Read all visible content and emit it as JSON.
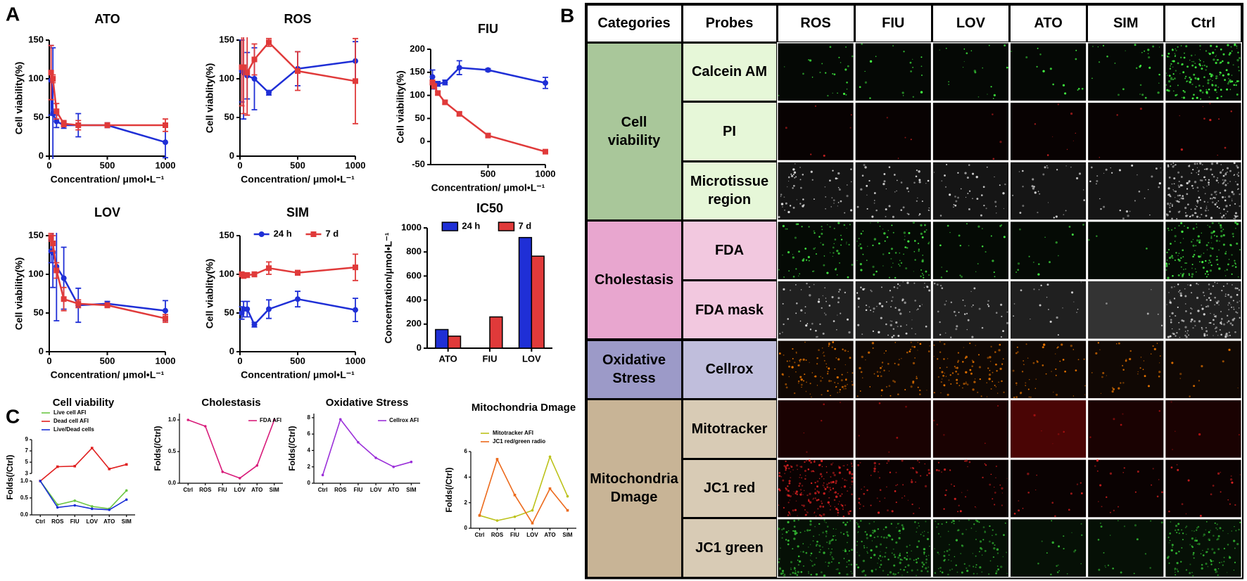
{
  "panel_labels": [
    "A",
    "B",
    "C"
  ],
  "chart_data": [
    {
      "type": "line",
      "title": "ATO",
      "x": [
        15.6,
        31.3,
        62.5,
        125,
        250,
        500,
        1000
      ],
      "xlim": [
        0,
        1000
      ],
      "xticks": [
        0,
        500,
        1000
      ],
      "ylim": [
        0,
        150
      ],
      "yticks": [
        0,
        50,
        100,
        150
      ],
      "x_label": "Concentration/ μmol•L⁻¹",
      "y_label": "Cell viability(%)",
      "series": [
        {
          "color": "#1f2fd6",
          "values": [
            98,
            55,
            45,
            40,
            40,
            40,
            18
          ],
          "errors": [
            45,
            85,
            8,
            4,
            15,
            3,
            20
          ]
        },
        {
          "color": "#e03a3a",
          "values": [
            108,
            100,
            58,
            42,
            40,
            40,
            40
          ],
          "errors": [
            35,
            5,
            10,
            4,
            6,
            3,
            8
          ]
        }
      ]
    },
    {
      "type": "line",
      "title": "ROS",
      "x": [
        15.6,
        31.3,
        62.5,
        125,
        250,
        500,
        1000
      ],
      "xlim": [
        0,
        1000
      ],
      "xticks": [
        0,
        500,
        1000
      ],
      "ylim": [
        0,
        150
      ],
      "yticks": [
        0,
        50,
        100,
        150
      ],
      "x_label": "Concentration/ μmol•L⁻¹",
      "y_label": "Cell viablity(%)",
      "series": [
        {
          "color": "#1f2fd6",
          "values": [
            110,
            108,
            104,
            100,
            82,
            113,
            123
          ],
          "errors": [
            40,
            60,
            30,
            40,
            3,
            22,
            25
          ]
        },
        {
          "color": "#e03a3a",
          "values": [
            115,
            115,
            108,
            125,
            147,
            110,
            97
          ],
          "errors": [
            50,
            60,
            55,
            20,
            5,
            25,
            55
          ]
        }
      ]
    },
    {
      "type": "line",
      "title": "FIU",
      "x": [
        15.6,
        31.3,
        62.5,
        125,
        250,
        500,
        1000
      ],
      "xlim": [
        0,
        1000
      ],
      "xticks": [
        500,
        1000
      ],
      "ylim": [
        -50,
        200
      ],
      "yticks": [
        -50,
        0,
        50,
        100,
        150,
        200
      ],
      "x_label": "Concentration/ μmol•L⁻¹",
      "y_label": "Cell viability(%)",
      "series": [
        {
          "color": "#1f2fd6",
          "values": [
            140,
            122,
            125,
            128,
            160,
            155,
            127
          ],
          "errors": [
            15,
            8,
            5,
            5,
            15,
            3,
            12
          ]
        },
        {
          "color": "#e03a3a",
          "values": [
            128,
            120,
            105,
            85,
            60,
            13,
            -22
          ],
          "errors": [
            5,
            5,
            4,
            4,
            4,
            3,
            4
          ]
        }
      ]
    },
    {
      "type": "line",
      "title": "LOV",
      "x": [
        15.6,
        31.3,
        62.5,
        125,
        250,
        500,
        1000
      ],
      "xlim": [
        0,
        1000
      ],
      "xticks": [
        0,
        500,
        1000
      ],
      "ylim": [
        0,
        150
      ],
      "yticks": [
        0,
        50,
        100,
        150
      ],
      "x_label": "Concentration/ μmol•L⁻¹",
      "y_label": "Cell viability(%)",
      "series": [
        {
          "color": "#1f2fd6",
          "values": [
            130,
            128,
            110,
            95,
            60,
            62,
            53
          ],
          "errors": [
            15,
            45,
            70,
            40,
            22,
            3,
            13
          ]
        },
        {
          "color": "#e03a3a",
          "values": [
            148,
            140,
            105,
            68,
            62,
            60,
            43
          ],
          "errors": [
            5,
            10,
            10,
            15,
            5,
            3,
            5
          ]
        }
      ]
    },
    {
      "type": "line",
      "title": "SIM",
      "x": [
        15.6,
        31.3,
        62.5,
        125,
        250,
        500,
        1000
      ],
      "xlim": [
        0,
        1000
      ],
      "xticks": [
        0,
        500,
        1000
      ],
      "ylim": [
        0,
        150
      ],
      "yticks": [
        0,
        50,
        100,
        150
      ],
      "x_label": "Concentration/ μmol•L⁻¹",
      "y_label": "Cell viablity(%)",
      "legend": "top",
      "series": [
        {
          "name": "24 h",
          "color": "#1f2fd6",
          "values": [
            50,
            55,
            55,
            35,
            55,
            68,
            54
          ],
          "errors": [
            8,
            10,
            10,
            3,
            12,
            10,
            15
          ]
        },
        {
          "name": "7 d",
          "color": "#e03a3a",
          "values": [
            100,
            98,
            99,
            100,
            108,
            102,
            109
          ],
          "errors": [
            3,
            3,
            3,
            3,
            8,
            3,
            17
          ]
        }
      ]
    },
    {
      "type": "bar",
      "title": "IC50",
      "categories": [
        "ATO",
        "FIU",
        "LOV"
      ],
      "ylim": [
        0,
        1000
      ],
      "yticks": [
        0,
        200,
        400,
        600,
        800,
        1000
      ],
      "y_label": "Concentration/μmol•L⁻¹",
      "legend": "top",
      "series": [
        {
          "name": "24 h",
          "color": "#1f2fd6",
          "values": [
            155,
            null,
            920
          ]
        },
        {
          "name": "7 d",
          "color": "#e03a3a",
          "values": [
            100,
            260,
            765
          ]
        }
      ]
    },
    {
      "type": "line",
      "title": "Cell viability",
      "categories": [
        "Ctrl",
        "ROS",
        "FIU",
        "LOV",
        "ATO",
        "SIM"
      ],
      "ylim": [
        0,
        9
      ],
      "ybreak": [
        1,
        3
      ],
      "yticks": [
        {
          "value": 0,
          "label": "0.0"
        },
        0.5,
        {
          "value": 1,
          "label": "1.0"
        },
        3,
        5,
        7,
        9
      ],
      "y_label": "Folds(/Ctrl)",
      "legend": "upper left",
      "series": [
        {
          "name": "Live cell AFI",
          "color": "#6cc644",
          "values": [
            1.0,
            0.3,
            0.42,
            0.25,
            0.18,
            0.72
          ]
        },
        {
          "name": "Dead cell AFI",
          "color": "#e02020",
          "values": [
            1.0,
            4.2,
            4.3,
            7.5,
            3.8,
            4.6
          ]
        },
        {
          "name": "Live/Dead cells",
          "color": "#1a2fd6",
          "values": [
            1.0,
            0.22,
            0.28,
            0.18,
            0.15,
            0.45
          ]
        }
      ]
    },
    {
      "type": "line",
      "title": "Cholestasis",
      "categories": [
        "Ctrl",
        "ROS",
        "FIU",
        "LOV",
        "ATO",
        "SIM"
      ],
      "ylim": [
        0,
        1.1
      ],
      "yticks": [
        {
          "value": 0,
          "label": "0.0"
        },
        0.5,
        {
          "value": 1,
          "label": "1.0"
        }
      ],
      "y_label": "Folds(/Ctrl)",
      "legend": "upper right",
      "series": [
        {
          "name": "FDA AFI",
          "color": "#d81b7a",
          "values": [
            1.0,
            0.9,
            0.18,
            0.08,
            0.28,
            1.0
          ]
        }
      ]
    },
    {
      "type": "line",
      "title": "Oxidative Stress",
      "categories": [
        "Ctrl",
        "ROS",
        "FIU",
        "LOV",
        "ATO",
        "SIM"
      ],
      "ylim": [
        0,
        8.5
      ],
      "yticks": [
        0,
        2,
        4,
        6,
        8
      ],
      "y_label": "Folds(/Ctrl)",
      "legend": "upper right",
      "series": [
        {
          "name": "Cellrox AFI",
          "color": "#9b30d9",
          "values": [
            1,
            7.8,
            5,
            3.1,
            2,
            2.6
          ]
        }
      ]
    },
    {
      "type": "line",
      "title": "Mitochondria Dmage",
      "categories": [
        "Ctrl",
        "ROS",
        "FIU",
        "LOV",
        "ATO",
        "SIM"
      ],
      "ylim": [
        0,
        6
      ],
      "yticks": [
        0,
        2,
        4,
        6
      ],
      "y_label": "Folds(/Ctrl)",
      "legend": "upper left",
      "series": [
        {
          "name": "Mitotracker AFI",
          "color": "#bcc21a",
          "values": [
            1.0,
            0.6,
            0.9,
            1.4,
            5.6,
            2.5
          ]
        },
        {
          "name": "JC1 red/green radio",
          "color": "#ec6a1c",
          "values": [
            1.0,
            5.4,
            2.6,
            0.4,
            3.1,
            1.4
          ]
        }
      ]
    }
  ],
  "table": {
    "header": [
      "Categories",
      "Probes",
      "ROS",
      "FIU",
      "LOV",
      "ATO",
      "SIM",
      "Ctrl"
    ],
    "groups": [
      {
        "name": "Cell viability",
        "color": "#a9c79a",
        "probe_color": "#e6f7d8",
        "probes": [
          "Calcein AM",
          "PI",
          "Microtissue region"
        ]
      },
      {
        "name": "Cholestasis",
        "color": "#e8a6cf",
        "probe_color": "#f2c8df",
        "probes": [
          "FDA",
          "FDA mask"
        ]
      },
      {
        "name": "Oxidative Stress",
        "color": "#9c9ac8",
        "probe_color": "#c0bedc",
        "probes": [
          "Cellrox"
        ]
      },
      {
        "name": "Mitochondria Dmage",
        "color": "#c8b496",
        "probe_color": "#d8cbb5",
        "probes": [
          "Mitotracker",
          "JC1 red",
          "JC1 green"
        ]
      }
    ]
  }
}
